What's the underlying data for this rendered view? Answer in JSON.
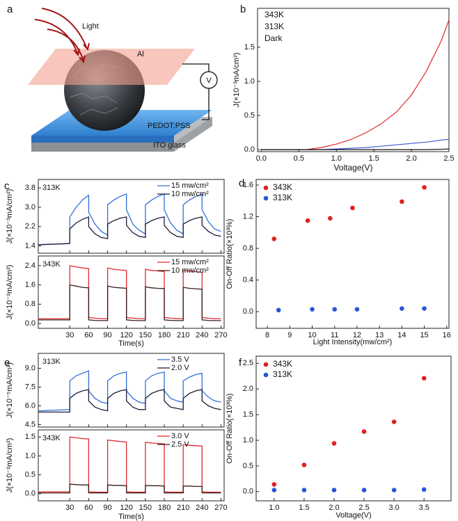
{
  "diagram": {
    "panel_label": "a",
    "labels": {
      "light": "Light",
      "al": "Al",
      "voltmeter": "V",
      "pedot": "PEDOT:PSS",
      "ito": "ITO glass"
    }
  },
  "chart_data": [
    {
      "type": "line",
      "panel_label": "b",
      "xlabel": "Voltage(V)",
      "ylabel": "J(×10⁻³mA/cm²)",
      "xlim": [
        -0.05,
        2.5
      ],
      "xticks": [
        {
          "value": 0,
          "label": "0.0"
        },
        0.5,
        {
          "value": 1,
          "label": "1.0"
        },
        1.5,
        {
          "value": 2,
          "label": "2.0"
        },
        2.5
      ],
      "ylim": [
        -0.03,
        2.07
      ],
      "yticks": [
        {
          "value": 0,
          "label": "0.0"
        },
        0.5,
        {
          "value": 1,
          "label": "1.0"
        },
        1.5
      ],
      "legend": "upper left",
      "x": [
        0,
        0.5,
        0.6,
        0.8,
        1.0,
        1.2,
        1.4,
        1.6,
        1.8,
        2.0,
        2.2,
        2.4,
        2.5
      ],
      "series": [
        {
          "name": "343K",
          "color": "#e0282e",
          "values": [
            0,
            0,
            0,
            0.03,
            0.08,
            0.15,
            0.25,
            0.38,
            0.55,
            0.8,
            1.15,
            1.6,
            1.9
          ]
        },
        {
          "name": "313K",
          "color": "#3b5bd6",
          "values": [
            0,
            0,
            0,
            0,
            0.01,
            0.02,
            0.03,
            0.05,
            0.07,
            0.09,
            0.11,
            0.14,
            0.15
          ]
        },
        {
          "name": "Dark",
          "color": "#111111",
          "values": [
            0,
            0,
            0,
            0,
            0,
            0,
            0,
            0,
            0,
            0,
            0,
            0.005,
            0.01
          ]
        }
      ]
    },
    {
      "type": "line",
      "panel_label": "c",
      "xlabel": "Time(s)",
      "xlim": [
        -20,
        275
      ],
      "xticks": [
        30,
        60,
        90,
        120,
        150,
        180,
        210,
        240,
        270
      ],
      "x": [
        -20,
        30,
        30,
        40,
        50,
        60,
        60,
        70,
        80,
        90,
        90,
        100,
        110,
        120,
        120,
        130,
        140,
        150,
        150,
        160,
        170,
        180,
        180,
        190,
        200,
        210,
        210,
        220,
        230,
        240,
        240,
        250,
        260,
        270
      ],
      "subplots": [
        {
          "annotation": "313K",
          "annotation_color": "#2a3fc8",
          "ylabel": "J(×10⁻³mA/cm²)",
          "ylim": [
            1.1,
            4.15
          ],
          "yticks": [
            1.4,
            2.2,
            {
              "value": 3,
              "label": "3.0"
            },
            3.8
          ],
          "series": [
            {
              "name": "15 mw/cm²",
              "color": "#2f6fd6",
              "values": [
                1.45,
                1.5,
                2.6,
                3.0,
                3.3,
                3.5,
                2.8,
                2.3,
                2.0,
                1.85,
                3.1,
                3.3,
                3.45,
                3.55,
                2.9,
                2.3,
                2.05,
                1.9,
                3.1,
                3.3,
                3.45,
                3.55,
                2.9,
                2.35,
                2.05,
                1.9,
                3.1,
                3.3,
                3.45,
                3.55,
                2.9,
                2.4,
                2.1,
                2.0
              ]
            },
            {
              "name": "10 mw/cm²",
              "color": "#1b1b3a",
              "values": [
                1.45,
                1.5,
                2.1,
                2.35,
                2.5,
                2.6,
                2.2,
                1.9,
                1.75,
                1.7,
                2.3,
                2.45,
                2.55,
                2.6,
                2.25,
                1.95,
                1.8,
                1.75,
                2.3,
                2.45,
                2.55,
                2.6,
                2.25,
                1.95,
                1.8,
                1.75,
                2.3,
                2.45,
                2.55,
                2.6,
                2.25,
                2.0,
                1.85,
                1.8
              ]
            }
          ]
        },
        {
          "annotation": "343K",
          "annotation_color": "#e0282e",
          "ylabel": "J(×10⁻²mA/cm²)",
          "ylim": [
            -0.2,
            2.8
          ],
          "yticks": [
            {
              "value": 0,
              "label": "0.0"
            },
            0.8,
            1.6,
            2.4
          ],
          "series": [
            {
              "name": "15 mw/cm²",
              "color": "#e0282e",
              "values": [
                0.2,
                0.2,
                2.4,
                2.35,
                2.3,
                2.28,
                0.25,
                0.22,
                0.2,
                0.2,
                2.3,
                2.25,
                2.22,
                2.2,
                0.25,
                0.22,
                0.2,
                0.2,
                2.25,
                2.2,
                2.18,
                2.15,
                0.25,
                0.22,
                0.2,
                0.2,
                2.2,
                2.18,
                2.15,
                2.12,
                0.25,
                0.22,
                0.2,
                0.2
              ]
            },
            {
              "name": "10 mw/cm²",
              "color": "#3a1a1a",
              "values": [
                0.15,
                0.15,
                1.6,
                1.55,
                1.5,
                1.48,
                0.15,
                0.13,
                0.12,
                0.12,
                1.55,
                1.5,
                1.48,
                1.46,
                0.15,
                0.13,
                0.12,
                0.12,
                1.52,
                1.48,
                1.46,
                1.45,
                0.15,
                0.13,
                0.12,
                0.12,
                1.5,
                1.46,
                1.44,
                1.42,
                0.15,
                0.13,
                0.12,
                0.12
              ]
            }
          ]
        }
      ]
    },
    {
      "type": "scatter",
      "panel_label": "d",
      "xlabel": "Light Intensity(mw/cm²)",
      "ylabel": "On-Off Ratio(×10³%)",
      "xlim": [
        7.5,
        16.1
      ],
      "xticks": [
        8,
        9,
        10,
        11,
        12,
        13,
        14,
        15,
        16
      ],
      "ylim": [
        -0.21,
        1.67
      ],
      "yticks": [
        {
          "value": 0,
          "label": "0.0"
        },
        0.4,
        0.8,
        1.2,
        1.6
      ],
      "legend": "upper left",
      "series": [
        {
          "name": "343K",
          "color": "#e02020",
          "x": [
            8.3,
            9.8,
            10.8,
            11.8,
            14,
            15
          ],
          "values": [
            0.92,
            1.15,
            1.18,
            1.31,
            1.39,
            1.57
          ]
        },
        {
          "name": "313K",
          "color": "#2a55d8",
          "x": [
            8.5,
            10,
            11,
            12,
            14,
            15
          ],
          "values": [
            0.02,
            0.03,
            0.03,
            0.03,
            0.04,
            0.04
          ]
        }
      ]
    },
    {
      "type": "line",
      "panel_label": "e",
      "xlabel": "Time(s)",
      "xlim": [
        -20,
        275
      ],
      "xticks": [
        30,
        60,
        90,
        120,
        150,
        180,
        210,
        240,
        270
      ],
      "x": [
        -20,
        30,
        30,
        40,
        50,
        60,
        60,
        70,
        80,
        90,
        90,
        100,
        110,
        120,
        120,
        130,
        140,
        150,
        150,
        160,
        170,
        180,
        180,
        190,
        200,
        210,
        210,
        220,
        230,
        240,
        240,
        250,
        260,
        270
      ],
      "subplots": [
        {
          "annotation": "313K",
          "annotation_color": "#2a3fc8",
          "ylabel": "J(×10⁻⁵mA/cm²)",
          "ylim": [
            4.3,
            10.2
          ],
          "yticks": [
            4.5,
            {
              "value": 6,
              "label": "6.0"
            },
            7.5,
            {
              "value": 9,
              "label": "9.0"
            }
          ],
          "series": [
            {
              "name": "3.5 V",
              "color": "#2f6fd6",
              "values": [
                5.6,
                5.7,
                8.0,
                8.4,
                8.6,
                8.8,
                7.2,
                6.6,
                6.3,
                6.2,
                8.0,
                8.4,
                8.6,
                8.7,
                7.2,
                6.6,
                6.3,
                6.2,
                8.0,
                8.4,
                8.6,
                8.7,
                7.2,
                6.6,
                6.4,
                6.3,
                8.0,
                8.3,
                8.5,
                8.6,
                7.2,
                6.7,
                6.4,
                6.3
              ]
            },
            {
              "name": "2.0 V",
              "color": "#1b1b3a",
              "values": [
                5.5,
                5.5,
                6.6,
                7.0,
                7.2,
                7.3,
                6.4,
                5.9,
                5.7,
                5.6,
                6.6,
                7.0,
                7.2,
                7.3,
                6.4,
                5.9,
                5.7,
                5.7,
                6.6,
                7.0,
                7.2,
                7.3,
                6.4,
                5.9,
                5.8,
                5.7,
                6.6,
                7.0,
                7.2,
                7.3,
                6.4,
                6.0,
                5.8,
                5.7
              ]
            }
          ]
        },
        {
          "annotation": "343K",
          "annotation_color": "#e0282e",
          "ylabel": "J(×10⁻²mA/cm²)",
          "ylim": [
            -0.19,
            1.69
          ],
          "yticks": [
            {
              "value": 0,
              "label": "0.0"
            },
            0.5,
            {
              "value": 1,
              "label": "1.0"
            },
            1.5
          ],
          "series": [
            {
              "name": "3.0 V",
              "color": "#e0282e",
              "values": [
                0.05,
                0.05,
                1.5,
                1.48,
                1.46,
                1.45,
                0.05,
                0.04,
                0.04,
                0.04,
                1.42,
                1.4,
                1.38,
                1.37,
                0.05,
                0.04,
                0.04,
                0.04,
                1.36,
                1.34,
                1.33,
                1.32,
                0.05,
                0.04,
                0.04,
                0.04,
                1.3,
                1.28,
                1.27,
                1.26,
                0.05,
                0.04,
                0.04,
                0.04
              ]
            },
            {
              "name": "2.5 V",
              "color": "#3a1a1a",
              "values": [
                0.02,
                0.02,
                0.25,
                0.24,
                0.23,
                0.23,
                0.02,
                0.02,
                0.02,
                0.02,
                0.23,
                0.22,
                0.22,
                0.21,
                0.02,
                0.02,
                0.02,
                0.02,
                0.22,
                0.21,
                0.21,
                0.2,
                0.02,
                0.02,
                0.02,
                0.02,
                0.2,
                0.2,
                0.19,
                0.19,
                0.02,
                0.02,
                0.02,
                0.02
              ]
            }
          ]
        }
      ]
    },
    {
      "type": "scatter",
      "panel_label": "f",
      "xlabel": "Voltage(V)",
      "ylabel": "On-Off Ratio(×10³%)",
      "xlim": [
        0.7,
        3.95
      ],
      "xticks": [
        {
          "value": 1,
          "label": "1.0"
        },
        1.5,
        {
          "value": 2,
          "label": "2.0"
        },
        2.5,
        {
          "value": 3,
          "label": "3.0"
        },
        3.5
      ],
      "ylim": [
        -0.18,
        2.64
      ],
      "yticks": [
        {
          "value": 0,
          "label": "0.0"
        },
        0.5,
        {
          "value": 1,
          "label": "1.0"
        },
        1.5,
        {
          "value": 2,
          "label": "2.0"
        },
        2.5
      ],
      "legend": "upper left",
      "series": [
        {
          "name": "343K",
          "color": "#e02020",
          "x": [
            1,
            1.5,
            2,
            2.5,
            3,
            3.5
          ],
          "values": [
            0.14,
            0.52,
            0.94,
            1.17,
            1.36,
            2.21
          ]
        },
        {
          "name": "313K",
          "color": "#2a55d8",
          "x": [
            1,
            1.5,
            2,
            2.5,
            3,
            3.5
          ],
          "values": [
            0.03,
            0.03,
            0.03,
            0.03,
            0.03,
            0.04
          ]
        }
      ]
    }
  ]
}
